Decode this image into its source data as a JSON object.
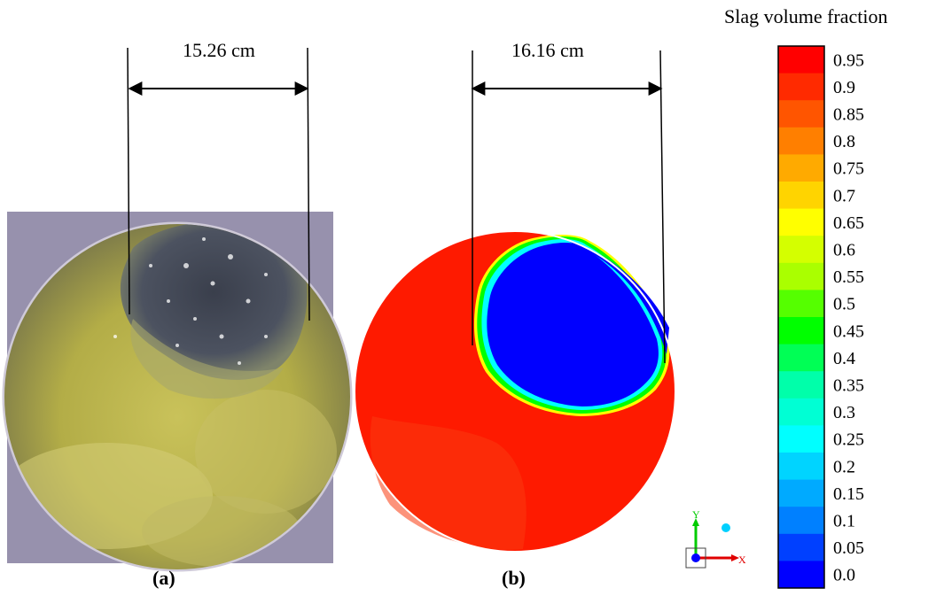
{
  "figure": {
    "panel_a": {
      "label": "(a)",
      "dimension": "15.26 cm"
    },
    "panel_b": {
      "label": "(b)",
      "dimension": "16.16 cm"
    }
  },
  "colorbar": {
    "title": "Slag volume fraction",
    "ticks": [
      "0.95",
      "0.9",
      "0.85",
      "0.8",
      "0.75",
      "0.7",
      "0.65",
      "0.6",
      "0.55",
      "0.5",
      "0.45",
      "0.4",
      "0.35",
      "0.3",
      "0.25",
      "0.2",
      "0.15",
      "0.1",
      "0.05",
      "0.0"
    ],
    "colors": [
      "#ff0000",
      "#ff2a00",
      "#ff5500",
      "#ff7f00",
      "#ffaa00",
      "#ffd400",
      "#ffff00",
      "#d4ff00",
      "#aaff00",
      "#55ff00",
      "#00ff00",
      "#00ff55",
      "#00ffaa",
      "#00ffd4",
      "#00ffff",
      "#00d4ff",
      "#00aaff",
      "#0080ff",
      "#0040ff",
      "#0000ff"
    ]
  },
  "axes_triad": {
    "x_label": "X",
    "y_label": "Y"
  }
}
